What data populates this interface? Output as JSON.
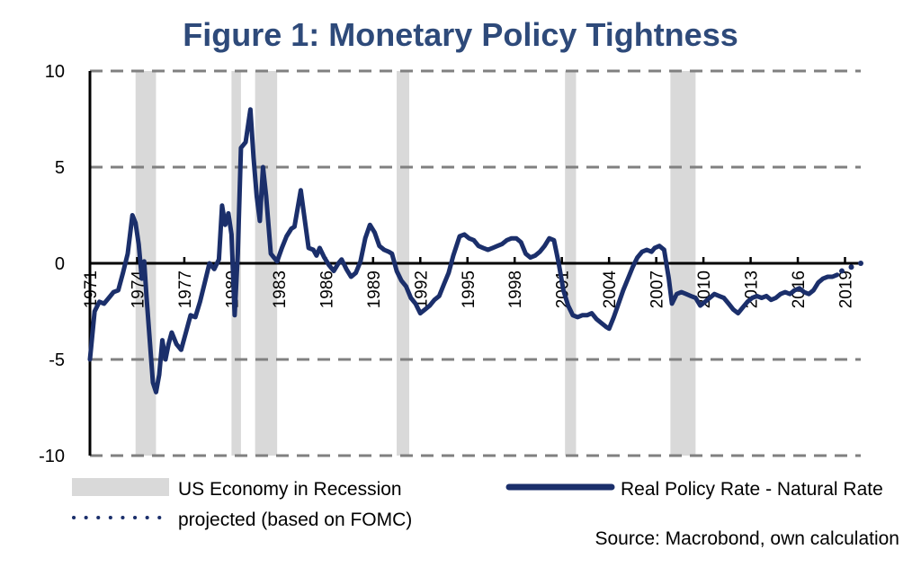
{
  "chart_data": {
    "type": "line",
    "title": "Figure 1: Monetary Policy Tightness",
    "xlabel": "",
    "ylabel": "",
    "xlim": [
      1971,
      2020
    ],
    "ylim": [
      -10,
      10
    ],
    "yticks": [
      10,
      5,
      0,
      -5,
      -10
    ],
    "ytick_labels": [
      "10",
      "5",
      "0",
      "-5",
      "-10"
    ],
    "xticks": [
      1971,
      1974,
      1977,
      1980,
      1983,
      1986,
      1989,
      1992,
      1995,
      1998,
      2001,
      2004,
      2007,
      2010,
      2013,
      2016,
      2019
    ],
    "xtick_labels": [
      "1971",
      "1974",
      "1977",
      "1980",
      "1983",
      "1986",
      "1989",
      "1992",
      "1995",
      "1998",
      "2001",
      "2004",
      "2007",
      "2010",
      "2013",
      "2016",
      "2019"
    ],
    "grid": "horizontal dashed",
    "colors": {
      "series": "#1b2f6b",
      "recession": "#d9d9d9",
      "grid": "#808080",
      "title": "#2e4a7a"
    },
    "recessions": [
      {
        "start": 1973.9,
        "end": 1975.2
      },
      {
        "start": 1980.0,
        "end": 1980.6
      },
      {
        "start": 1981.5,
        "end": 1982.9
      },
      {
        "start": 1990.5,
        "end": 1991.3
      },
      {
        "start": 2001.2,
        "end": 2001.9
      },
      {
        "start": 2007.9,
        "end": 2009.5
      }
    ],
    "series": [
      {
        "name": "Real Policy Rate - Natural Rate",
        "style": "solid",
        "points": [
          [
            1971.0,
            -5.0
          ],
          [
            1971.3,
            -2.5
          ],
          [
            1971.6,
            -2.0
          ],
          [
            1971.9,
            -2.1
          ],
          [
            1972.2,
            -1.8
          ],
          [
            1972.5,
            -1.5
          ],
          [
            1972.8,
            -1.4
          ],
          [
            1973.1,
            -0.5
          ],
          [
            1973.4,
            0.5
          ],
          [
            1973.7,
            2.5
          ],
          [
            1973.9,
            2.1
          ],
          [
            1974.1,
            1.0
          ],
          [
            1974.3,
            -0.8
          ],
          [
            1974.45,
            0.1
          ],
          [
            1974.6,
            -1.8
          ],
          [
            1974.8,
            -4.0
          ],
          [
            1975.0,
            -6.2
          ],
          [
            1975.2,
            -6.7
          ],
          [
            1975.4,
            -5.8
          ],
          [
            1975.6,
            -4.0
          ],
          [
            1975.8,
            -5.0
          ],
          [
            1976.0,
            -4.2
          ],
          [
            1976.2,
            -3.6
          ],
          [
            1976.5,
            -4.2
          ],
          [
            1976.8,
            -4.5
          ],
          [
            1977.1,
            -3.6
          ],
          [
            1977.4,
            -2.7
          ],
          [
            1977.7,
            -2.8
          ],
          [
            1978.0,
            -2.0
          ],
          [
            1978.3,
            -1.0
          ],
          [
            1978.6,
            0.0
          ],
          [
            1978.9,
            -0.3
          ],
          [
            1979.2,
            0.2
          ],
          [
            1979.4,
            3.0
          ],
          [
            1979.6,
            2.0
          ],
          [
            1979.8,
            2.6
          ],
          [
            1980.0,
            1.5
          ],
          [
            1980.2,
            -2.7
          ],
          [
            1980.4,
            0.5
          ],
          [
            1980.6,
            6.0
          ],
          [
            1980.9,
            6.3
          ],
          [
            1981.2,
            8.0
          ],
          [
            1981.4,
            5.5
          ],
          [
            1981.6,
            3.5
          ],
          [
            1981.8,
            2.2
          ],
          [
            1982.0,
            5.0
          ],
          [
            1982.2,
            3.5
          ],
          [
            1982.5,
            0.5
          ],
          [
            1982.9,
            0.1
          ],
          [
            1983.2,
            0.8
          ],
          [
            1983.5,
            1.4
          ],
          [
            1983.8,
            1.8
          ],
          [
            1984.0,
            1.9
          ],
          [
            1984.4,
            3.8
          ],
          [
            1984.7,
            2.0
          ],
          [
            1984.9,
            0.8
          ],
          [
            1985.2,
            0.7
          ],
          [
            1985.4,
            0.4
          ],
          [
            1985.6,
            0.8
          ],
          [
            1985.9,
            0.3
          ],
          [
            1986.2,
            -0.1
          ],
          [
            1986.5,
            -0.4
          ],
          [
            1986.8,
            0.0
          ],
          [
            1987.0,
            0.2
          ],
          [
            1987.3,
            -0.3
          ],
          [
            1987.6,
            -0.7
          ],
          [
            1987.9,
            -0.5
          ],
          [
            1988.2,
            0.1
          ],
          [
            1988.5,
            1.3
          ],
          [
            1988.8,
            2.0
          ],
          [
            1989.1,
            1.6
          ],
          [
            1989.4,
            0.9
          ],
          [
            1989.7,
            0.7
          ],
          [
            1990.0,
            0.6
          ],
          [
            1990.2,
            0.5
          ],
          [
            1990.5,
            -0.4
          ],
          [
            1990.8,
            -0.9
          ],
          [
            1991.1,
            -1.2
          ],
          [
            1991.4,
            -1.8
          ],
          [
            1991.7,
            -2.1
          ],
          [
            1992.0,
            -2.6
          ],
          [
            1992.3,
            -2.4
          ],
          [
            1992.6,
            -2.2
          ],
          [
            1992.9,
            -1.9
          ],
          [
            1993.2,
            -1.7
          ],
          [
            1993.5,
            -1.1
          ],
          [
            1993.8,
            -0.5
          ],
          [
            1994.1,
            0.4
          ],
          [
            1994.5,
            1.4
          ],
          [
            1994.8,
            1.5
          ],
          [
            1995.1,
            1.3
          ],
          [
            1995.4,
            1.2
          ],
          [
            1995.7,
            0.9
          ],
          [
            1996.0,
            0.8
          ],
          [
            1996.3,
            0.7
          ],
          [
            1996.6,
            0.8
          ],
          [
            1996.9,
            0.9
          ],
          [
            1997.2,
            1.0
          ],
          [
            1997.5,
            1.2
          ],
          [
            1997.8,
            1.3
          ],
          [
            1998.1,
            1.3
          ],
          [
            1998.4,
            1.1
          ],
          [
            1998.7,
            0.5
          ],
          [
            1999.0,
            0.3
          ],
          [
            1999.3,
            0.4
          ],
          [
            1999.6,
            0.6
          ],
          [
            1999.9,
            0.9
          ],
          [
            2000.2,
            1.3
          ],
          [
            2000.5,
            1.2
          ],
          [
            2000.8,
            0.0
          ],
          [
            2001.1,
            -1.4
          ],
          [
            2001.4,
            -2.2
          ],
          [
            2001.7,
            -2.7
          ],
          [
            2002.0,
            -2.8
          ],
          [
            2002.3,
            -2.7
          ],
          [
            2002.6,
            -2.7
          ],
          [
            2002.9,
            -2.6
          ],
          [
            2003.2,
            -2.9
          ],
          [
            2003.5,
            -3.1
          ],
          [
            2003.8,
            -3.3
          ],
          [
            2004.0,
            -3.4
          ],
          [
            2004.3,
            -2.8
          ],
          [
            2004.6,
            -2.1
          ],
          [
            2004.9,
            -1.4
          ],
          [
            2005.2,
            -0.8
          ],
          [
            2005.5,
            -0.2
          ],
          [
            2005.8,
            0.3
          ],
          [
            2006.1,
            0.6
          ],
          [
            2006.4,
            0.7
          ],
          [
            2006.7,
            0.6
          ],
          [
            2006.9,
            0.8
          ],
          [
            2007.2,
            0.9
          ],
          [
            2007.5,
            0.7
          ],
          [
            2007.8,
            -0.8
          ],
          [
            2008.0,
            -2.1
          ],
          [
            2008.3,
            -1.6
          ],
          [
            2008.6,
            -1.5
          ],
          [
            2008.9,
            -1.6
          ],
          [
            2009.2,
            -1.7
          ],
          [
            2009.5,
            -1.8
          ],
          [
            2009.8,
            -2.2
          ],
          [
            2010.1,
            -2.0
          ],
          [
            2010.4,
            -1.8
          ],
          [
            2010.7,
            -1.6
          ],
          [
            2011.0,
            -1.7
          ],
          [
            2011.3,
            -1.8
          ],
          [
            2011.6,
            -2.1
          ],
          [
            2011.9,
            -2.4
          ],
          [
            2012.2,
            -2.6
          ],
          [
            2012.5,
            -2.3
          ],
          [
            2012.8,
            -2.0
          ],
          [
            2013.1,
            -1.8
          ],
          [
            2013.4,
            -1.7
          ],
          [
            2013.7,
            -1.8
          ],
          [
            2014.0,
            -1.7
          ],
          [
            2014.3,
            -1.9
          ],
          [
            2014.6,
            -1.8
          ],
          [
            2014.9,
            -1.6
          ],
          [
            2015.2,
            -1.5
          ],
          [
            2015.5,
            -1.6
          ],
          [
            2015.8,
            -1.4
          ],
          [
            2016.1,
            -1.3
          ],
          [
            2016.4,
            -1.5
          ],
          [
            2016.7,
            -1.6
          ],
          [
            2017.0,
            -1.4
          ],
          [
            2017.3,
            -1.0
          ],
          [
            2017.6,
            -0.8
          ],
          [
            2017.9,
            -0.7
          ],
          [
            2018.2,
            -0.7
          ],
          [
            2018.5,
            -0.6
          ]
        ]
      },
      {
        "name": "projected (based on FOMC)",
        "style": "dotted",
        "points": [
          [
            2018.8,
            -0.4
          ],
          [
            2019.4,
            -0.2
          ],
          [
            2020.0,
            0.0
          ]
        ]
      }
    ],
    "legend": {
      "placement": "bottom",
      "items": [
        {
          "label": "US Economy in Recession",
          "kind": "band"
        },
        {
          "label": "Real Policy Rate - Natural Rate",
          "kind": "solid-line"
        },
        {
          "label": "projected (based on FOMC)",
          "kind": "dotted-line"
        }
      ]
    },
    "source": "Source: Macrobond, own calculation"
  }
}
